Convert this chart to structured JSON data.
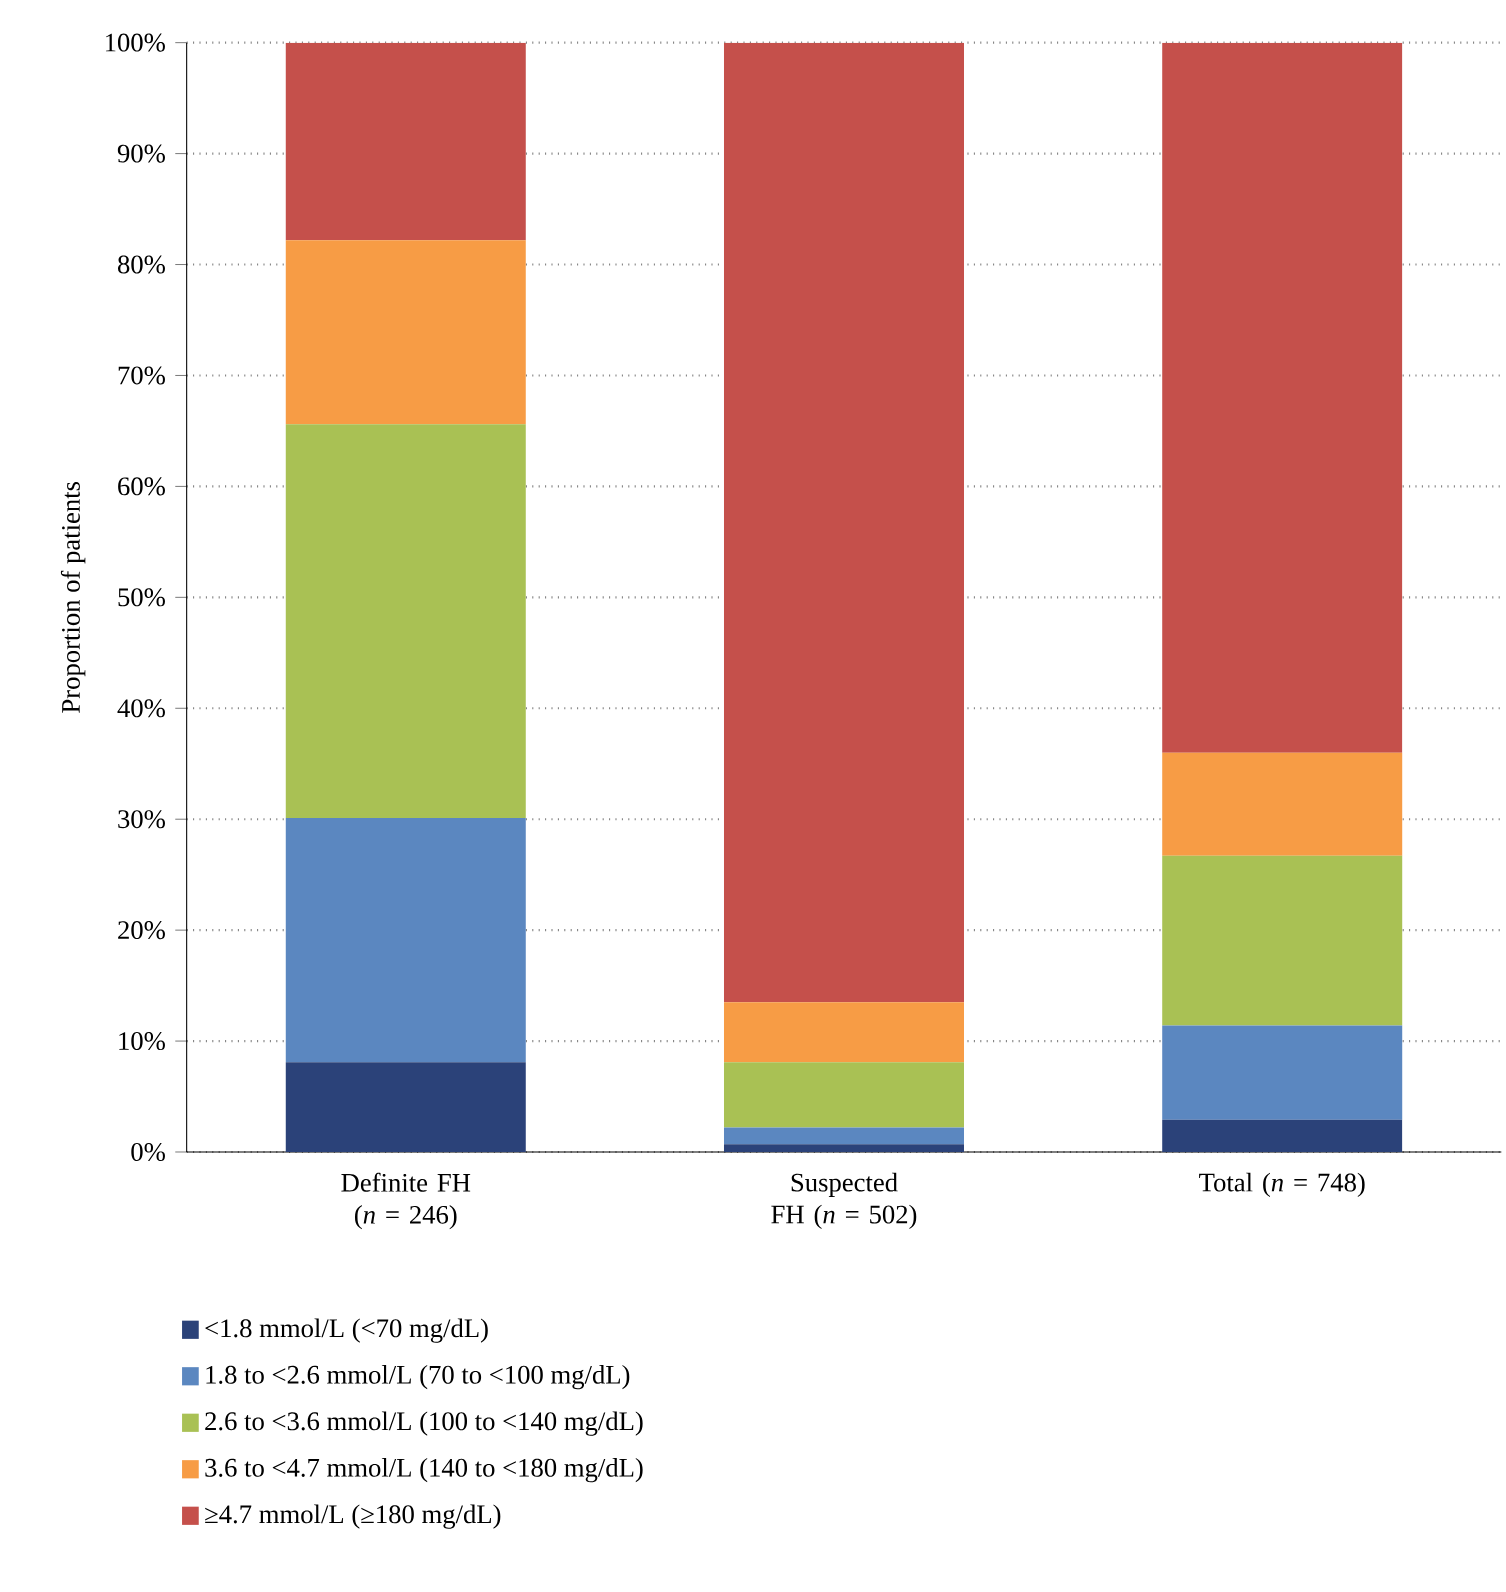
{
  "chart_data": {
    "type": "bar",
    "stacked": true,
    "ylabel": "Proportion of patients",
    "categories": [
      "Definite FH (*n* = 246)",
      "Suspected FH (*n* = 502)",
      "Total (*n* = 748)"
    ],
    "series": [
      {
        "name": "<1.8 mmol/L (<70 mg/dL)",
        "color": "#2b4279",
        "values": [
          8.1,
          0.7,
          2.9
        ]
      },
      {
        "name": "1.8 to <2.6 mmol/L (70 to <100 mg/dL)",
        "color": "#5b87c0",
        "values": [
          22.0,
          1.5,
          8.5
        ]
      },
      {
        "name": "2.6 to <3.6 mmol/L (100 to <140 mg/dL)",
        "color": "#a9c154",
        "values": [
          35.5,
          5.9,
          15.3
        ]
      },
      {
        "name": "3.6 to <4.7 mmol/L (140 to <180 mg/dL)",
        "color": "#f79c45",
        "values": [
          16.6,
          5.4,
          9.3
        ]
      },
      {
        "name": "≥4.7 mmol/L (≥180 mg/dL)",
        "color": "#c5504b",
        "values": [
          17.8,
          86.5,
          64.0
        ]
      }
    ],
    "ylim": [
      0,
      100
    ],
    "yticks": [
      {
        "value": 0,
        "label": "0%"
      },
      {
        "value": 10,
        "label": "10%"
      },
      {
        "value": 20,
        "label": "20%"
      },
      {
        "value": 30,
        "label": "30%"
      },
      {
        "value": 40,
        "label": "40%"
      },
      {
        "value": 50,
        "label": "50%"
      },
      {
        "value": 60,
        "label": "60%"
      },
      {
        "value": 70,
        "label": "70%"
      },
      {
        "value": 80,
        "label": "80%"
      },
      {
        "value": 90,
        "label": "90%"
      },
      {
        "value": 100,
        "label": "100%"
      }
    ],
    "grid": "y",
    "legend": "bottom"
  }
}
